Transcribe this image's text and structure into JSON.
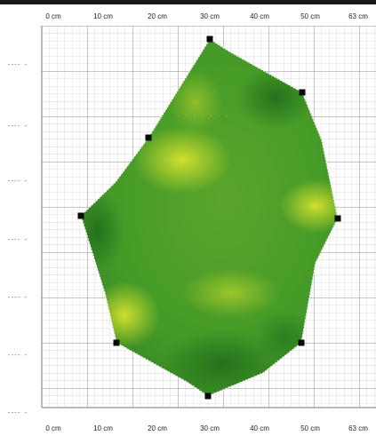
{
  "top_ruler": [
    "0 cm",
    "10 cm",
    "20 cm",
    "30 cm",
    "40 cm",
    "50 cm",
    "63 cm"
  ],
  "bottom_ruler": [
    "0 cm",
    "10 cm",
    "20 cm",
    "30 cm",
    "40 cm",
    "50 cm",
    "63 cm"
  ],
  "left_ticks": [
    "---- -",
    "---- -",
    "---- -",
    "---- -",
    "---- -",
    "---- -",
    "---- -",
    "--- -"
  ],
  "colors": {
    "grid_minor": "#c8c8c8",
    "grid_major": "#8a8a8a",
    "shape_dark": "#2f7a1f",
    "shape_mid": "#5aa02a",
    "shape_light": "#c9d92c",
    "handle": "#0a0a0a"
  },
  "shape": {
    "name": "polygon-shape",
    "vertex_count": 10
  }
}
